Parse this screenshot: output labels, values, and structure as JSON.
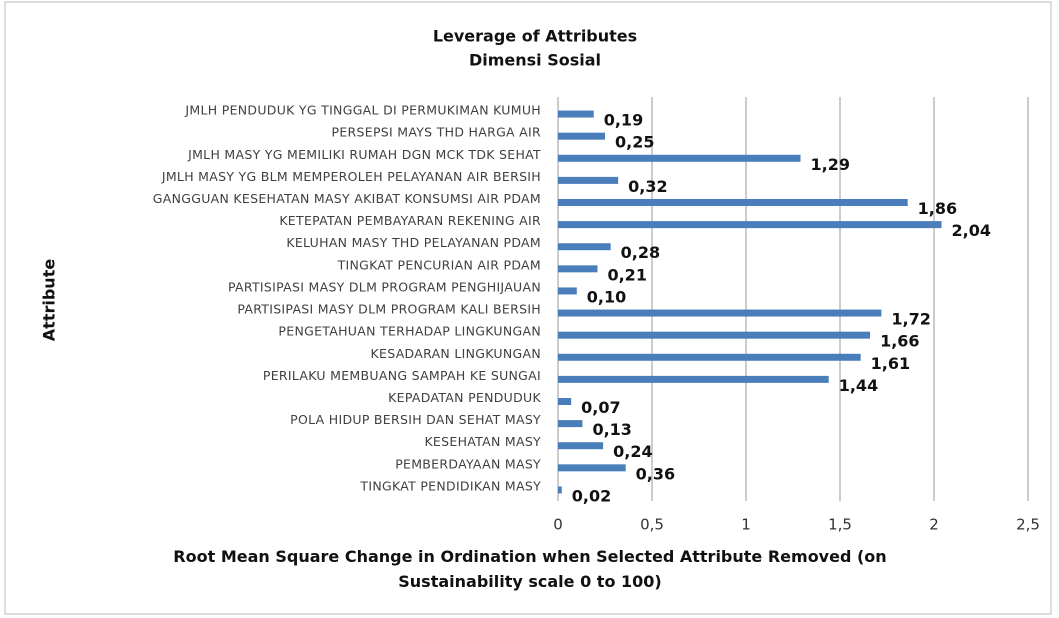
{
  "chart_data": {
    "type": "barh",
    "title": "Leverage of Attributes",
    "subtitle": "Dimensi Sosial",
    "ylabel": "Attribute",
    "xlabel": "Root Mean Square Change in Ordination when Selected Attribute Removed (on Sustainability scale 0 to 100)",
    "categories": [
      "JMLH PENDUDUK YG TINGGAL DI PERMUKIMAN KUMUH",
      "PERSEPSI MAYS THD HARGA AIR",
      "JMLH MASY YG MEMILIKI RUMAH DGN MCK TDK SEHAT",
      "JMLH MASY YG BLM MEMPEROLEH PELAYANAN AIR BERSIH",
      "GANGGUAN KESEHATAN MASY AKIBAT KONSUMSI AIR PDAM",
      "KETEPATAN PEMBAYARAN REKENING AIR",
      "KELUHAN MASY THD PELAYANAN PDAM",
      "TINGKAT PENCURIAN AIR PDAM",
      "PARTISIPASI MASY DLM PROGRAM PENGHIJAUAN",
      "PARTISIPASI MASY DLM PROGRAM KALI BERSIH",
      "PENGETAHUAN TERHADAP LINGKUNGAN",
      "KESADARAN LINGKUNGAN",
      "PERILAKU MEMBUANG SAMPAH KE SUNGAI",
      "KEPADATAN PENDUDUK",
      "POLA HIDUP BERSIH DAN SEHAT MASY",
      "KESEHATAN MASY",
      "PEMBERDAYAAN MASY",
      "TINGKAT PENDIDIKAN MASY"
    ],
    "values": [
      0.19,
      0.25,
      1.29,
      0.32,
      1.86,
      2.04,
      0.28,
      0.21,
      0.1,
      1.72,
      1.66,
      1.61,
      1.44,
      0.07,
      0.13,
      0.24,
      0.36,
      0.02
    ],
    "value_labels": [
      "0,19",
      "0,25",
      "1,29",
      "0,32",
      "1,86",
      "2,04",
      "0,28",
      "0,21",
      "0,10",
      "1,72",
      "1,66",
      "1,61",
      "1,44",
      "0,07",
      "0,13",
      "0,24",
      "0,36",
      "0,02"
    ],
    "color": "#4a7ebb",
    "xlim": [
      0,
      2.5
    ],
    "xticks": [
      0,
      {
        "value": 0.5,
        "label": "0,5"
      },
      1,
      {
        "value": 1.5,
        "label": "1,5"
      },
      2,
      {
        "value": 2.5,
        "label": "2,5"
      }
    ],
    "grid": true
  }
}
